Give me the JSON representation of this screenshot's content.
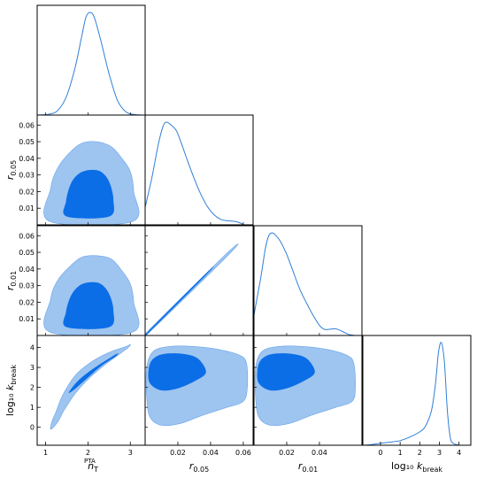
{
  "colors": {
    "outer": "#9ec4f0",
    "inner": "#0b6ee6",
    "line": "#2f7fd8",
    "frame": "#000000"
  },
  "chart_data": {
    "type": "corner",
    "parameters": [
      {
        "key": "nT",
        "tex_main": "n",
        "tex_sub": "T",
        "tex_sup": "PTA",
        "range": [
          0.8,
          3.35
        ],
        "ticks": [
          1,
          2,
          3
        ]
      },
      {
        "key": "r005",
        "tex_main": "r",
        "tex_sub": "0.05",
        "range": [
          0.0,
          0.066
        ],
        "ticks": [
          0.01,
          0.02,
          0.03,
          0.04,
          0.05,
          0.06
        ],
        "ticks_bottom": [
          0.02,
          0.04,
          0.06
        ]
      },
      {
        "key": "r001",
        "tex_main": "r",
        "tex_sub": "0.01",
        "range": [
          0.0,
          0.066
        ],
        "ticks": [
          0.01,
          0.02,
          0.03,
          0.04,
          0.05,
          0.06
        ],
        "ticks_bottom": [
          0.02,
          0.04
        ]
      },
      {
        "key": "logk",
        "tex_main": "log₁₀ k",
        "tex_sub": "break",
        "range": [
          -0.9,
          4.6
        ],
        "ticks": [
          0,
          1,
          2,
          3,
          4
        ]
      }
    ],
    "marginals": [
      {
        "param": "nT",
        "points": [
          [
            0.8,
            0
          ],
          [
            1.1,
            0.01
          ],
          [
            1.3,
            0.05
          ],
          [
            1.5,
            0.19
          ],
          [
            1.7,
            0.47
          ],
          [
            1.85,
            0.76
          ],
          [
            1.95,
            0.95
          ],
          [
            2.05,
            1.0
          ],
          [
            2.15,
            0.95
          ],
          [
            2.3,
            0.73
          ],
          [
            2.5,
            0.4
          ],
          [
            2.7,
            0.14
          ],
          [
            2.9,
            0.03
          ],
          [
            3.1,
            0.005
          ],
          [
            3.35,
            0
          ]
        ]
      },
      {
        "param": "r005",
        "points": [
          [
            0.0,
            0.17
          ],
          [
            0.004,
            0.45
          ],
          [
            0.008,
            0.78
          ],
          [
            0.011,
            0.96
          ],
          [
            0.013,
            1.0
          ],
          [
            0.016,
            0.97
          ],
          [
            0.019,
            0.92
          ],
          [
            0.022,
            0.8
          ],
          [
            0.026,
            0.62
          ],
          [
            0.03,
            0.45
          ],
          [
            0.034,
            0.3
          ],
          [
            0.038,
            0.18
          ],
          [
            0.042,
            0.1
          ],
          [
            0.046,
            0.055
          ],
          [
            0.05,
            0.04
          ],
          [
            0.054,
            0.035
          ],
          [
            0.057,
            0.025
          ],
          [
            0.06,
            0.005
          ]
        ]
      },
      {
        "param": "r001",
        "points": [
          [
            0.0,
            0.2
          ],
          [
            0.004,
            0.55
          ],
          [
            0.007,
            0.85
          ],
          [
            0.009,
            0.97
          ],
          [
            0.011,
            1.0
          ],
          [
            0.013,
            0.98
          ],
          [
            0.016,
            0.92
          ],
          [
            0.02,
            0.79
          ],
          [
            0.024,
            0.62
          ],
          [
            0.028,
            0.45
          ],
          [
            0.032,
            0.32
          ],
          [
            0.036,
            0.2
          ],
          [
            0.04,
            0.1
          ],
          [
            0.043,
            0.06
          ],
          [
            0.046,
            0.06
          ],
          [
            0.05,
            0.065
          ],
          [
            0.054,
            0.04
          ],
          [
            0.058,
            0.01
          ],
          [
            0.062,
            0
          ]
        ]
      },
      {
        "param": "logk",
        "points": [
          [
            -0.9,
            0
          ],
          [
            -0.5,
            0.005
          ],
          [
            0.0,
            0.02
          ],
          [
            0.5,
            0.03
          ],
          [
            1.0,
            0.045
          ],
          [
            1.5,
            0.08
          ],
          [
            2.0,
            0.13
          ],
          [
            2.3,
            0.19
          ],
          [
            2.6,
            0.34
          ],
          [
            2.8,
            0.6
          ],
          [
            2.95,
            0.9
          ],
          [
            3.1,
            1.0
          ],
          [
            3.25,
            0.82
          ],
          [
            3.4,
            0.35
          ],
          [
            3.55,
            0.08
          ],
          [
            3.7,
            0.02
          ],
          [
            4.0,
            0
          ]
        ]
      }
    ],
    "contours": [
      {
        "x": "nT",
        "y": "r005",
        "outer": [
          [
            1.1,
            0.002
          ],
          [
            3.05,
            0.002
          ],
          [
            3.08,
            0.02
          ],
          [
            3.0,
            0.032
          ],
          [
            2.8,
            0.04
          ],
          [
            2.55,
            0.047
          ],
          [
            2.2,
            0.05
          ],
          [
            1.85,
            0.049
          ],
          [
            1.55,
            0.043
          ],
          [
            1.28,
            0.034
          ],
          [
            1.12,
            0.022
          ]
        ],
        "inner": [
          [
            1.5,
            0.005
          ],
          [
            2.5,
            0.005
          ],
          [
            2.6,
            0.015
          ],
          [
            2.5,
            0.026
          ],
          [
            2.3,
            0.032
          ],
          [
            2.05,
            0.033
          ],
          [
            1.8,
            0.031
          ],
          [
            1.6,
            0.025
          ],
          [
            1.48,
            0.014
          ]
        ]
      },
      {
        "x": "nT",
        "y": "r001",
        "outer": [
          [
            1.1,
            0.002
          ],
          [
            3.05,
            0.002
          ],
          [
            3.08,
            0.02
          ],
          [
            3.0,
            0.031
          ],
          [
            2.8,
            0.039
          ],
          [
            2.55,
            0.046
          ],
          [
            2.2,
            0.048
          ],
          [
            1.85,
            0.047
          ],
          [
            1.55,
            0.041
          ],
          [
            1.28,
            0.033
          ],
          [
            1.12,
            0.022
          ]
        ],
        "inner": [
          [
            1.5,
            0.005
          ],
          [
            2.5,
            0.005
          ],
          [
            2.6,
            0.015
          ],
          [
            2.5,
            0.025
          ],
          [
            2.3,
            0.031
          ],
          [
            2.05,
            0.032
          ],
          [
            1.8,
            0.03
          ],
          [
            1.6,
            0.024
          ],
          [
            1.48,
            0.014
          ]
        ]
      },
      {
        "x": "nT",
        "y": "logk",
        "outer": [
          [
            1.12,
            -0.1
          ],
          [
            1.15,
            0.3
          ],
          [
            1.25,
            0.8
          ],
          [
            1.4,
            1.6
          ],
          [
            1.7,
            2.6
          ],
          [
            2.1,
            3.3
          ],
          [
            2.5,
            3.75
          ],
          [
            2.9,
            4.05
          ],
          [
            3.0,
            4.15
          ],
          [
            2.95,
            4.0
          ],
          [
            2.7,
            3.6
          ],
          [
            2.35,
            3.05
          ],
          [
            2.0,
            2.4
          ],
          [
            1.7,
            1.7
          ],
          [
            1.45,
            0.9
          ],
          [
            1.28,
            0.25
          ]
        ],
        "inner": [
          [
            1.55,
            1.75
          ],
          [
            1.75,
            2.3
          ],
          [
            2.1,
            2.9
          ],
          [
            2.5,
            3.45
          ],
          [
            2.7,
            3.7
          ],
          [
            2.65,
            3.55
          ],
          [
            2.3,
            3.05
          ],
          [
            1.95,
            2.4
          ],
          [
            1.65,
            1.85
          ]
        ]
      },
      {
        "x": "r005",
        "y": "r001",
        "outer": [
          [
            0.0005,
            0.0
          ],
          [
            0.0515,
            0.049
          ],
          [
            0.0495,
            0.049
          ],
          [
            0.0,
            0.001
          ]
        ],
        "inner": [
          [
            0.002,
            0.0015
          ],
          [
            0.038,
            0.037
          ],
          [
            0.037,
            0.037
          ],
          [
            0.0015,
            0.002
          ]
        ]
      },
      {
        "x": "r005",
        "y": "logk",
        "outer": [
          [
            0.003,
            0.5
          ],
          [
            0.01,
            0.1
          ],
          [
            0.022,
            0.2
          ],
          [
            0.035,
            0.6
          ],
          [
            0.05,
            1.0
          ],
          [
            0.06,
            1.3
          ],
          [
            0.0625,
            2.0
          ],
          [
            0.062,
            3.2
          ],
          [
            0.058,
            3.6
          ],
          [
            0.045,
            3.9
          ],
          [
            0.03,
            4.05
          ],
          [
            0.015,
            4.05
          ],
          [
            0.005,
            3.8
          ],
          [
            0.001,
            3.0
          ],
          [
            0.001,
            1.5
          ]
        ],
        "inner": [
          [
            0.003,
            2.2
          ],
          [
            0.01,
            1.85
          ],
          [
            0.02,
            1.95
          ],
          [
            0.03,
            2.3
          ],
          [
            0.037,
            2.7
          ],
          [
            0.035,
            3.2
          ],
          [
            0.03,
            3.55
          ],
          [
            0.02,
            3.7
          ],
          [
            0.01,
            3.65
          ],
          [
            0.004,
            3.35
          ],
          [
            0.002,
            2.8
          ]
        ]
      },
      {
        "x": "r001",
        "y": "logk",
        "outer": [
          [
            0.003,
            0.5
          ],
          [
            0.01,
            0.1
          ],
          [
            0.022,
            0.2
          ],
          [
            0.035,
            0.6
          ],
          [
            0.05,
            1.0
          ],
          [
            0.06,
            1.3
          ],
          [
            0.062,
            2.0
          ],
          [
            0.061,
            3.2
          ],
          [
            0.057,
            3.6
          ],
          [
            0.045,
            3.9
          ],
          [
            0.03,
            4.05
          ],
          [
            0.015,
            4.05
          ],
          [
            0.005,
            3.8
          ],
          [
            0.001,
            3.0
          ],
          [
            0.001,
            1.5
          ]
        ],
        "inner": [
          [
            0.003,
            2.2
          ],
          [
            0.01,
            1.85
          ],
          [
            0.02,
            1.95
          ],
          [
            0.03,
            2.3
          ],
          [
            0.037,
            2.7
          ],
          [
            0.035,
            3.2
          ],
          [
            0.03,
            3.55
          ],
          [
            0.02,
            3.7
          ],
          [
            0.01,
            3.65
          ],
          [
            0.004,
            3.35
          ],
          [
            0.002,
            2.8
          ]
        ]
      }
    ]
  }
}
